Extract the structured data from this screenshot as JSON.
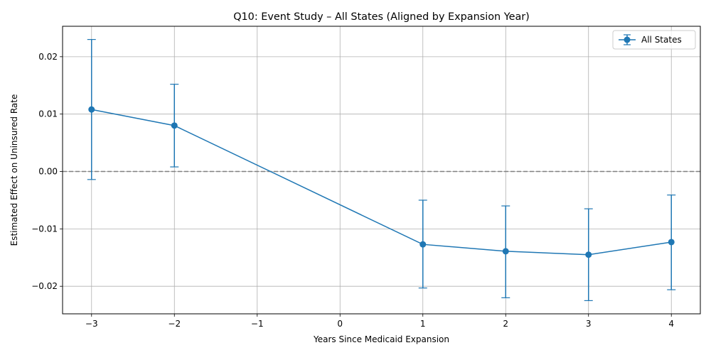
{
  "chart_data": {
    "type": "line",
    "title": "Q10: Event Study – All States (Aligned by Expansion Year)",
    "xlabel": "Years Since Medicaid Expansion",
    "ylabel": "Estimated Effect on Uninsured Rate",
    "xlim": [
      -3.35,
      4.35
    ],
    "ylim": [
      -0.0248,
      0.0253
    ],
    "xticks": [
      -3,
      -2,
      -1,
      0,
      1,
      2,
      3,
      4
    ],
    "xtick_labels": [
      "−3",
      "−2",
      "−1",
      "0",
      "1",
      "2",
      "3",
      "4"
    ],
    "yticks": [
      -0.02,
      -0.01,
      0.0,
      0.01,
      0.02
    ],
    "ytick_labels": [
      "−0.02",
      "−0.01",
      "0.00",
      "0.01",
      "0.02"
    ],
    "grid": true,
    "reference_line": {
      "y": 0,
      "style": "dashed",
      "color": "#808080"
    },
    "legend_position": "top-right",
    "series": [
      {
        "name": "All States",
        "color": "#1f77b4",
        "x": [
          -3,
          -2,
          1,
          2,
          3,
          4
        ],
        "y": [
          0.0108,
          0.008,
          -0.0127,
          -0.0139,
          -0.0145,
          -0.0123
        ],
        "ci_low": [
          -0.0014,
          0.0008,
          -0.0203,
          -0.022,
          -0.0225,
          -0.0206
        ],
        "ci_high": [
          0.023,
          0.0152,
          -0.005,
          -0.006,
          -0.0065,
          -0.0041
        ]
      }
    ]
  }
}
